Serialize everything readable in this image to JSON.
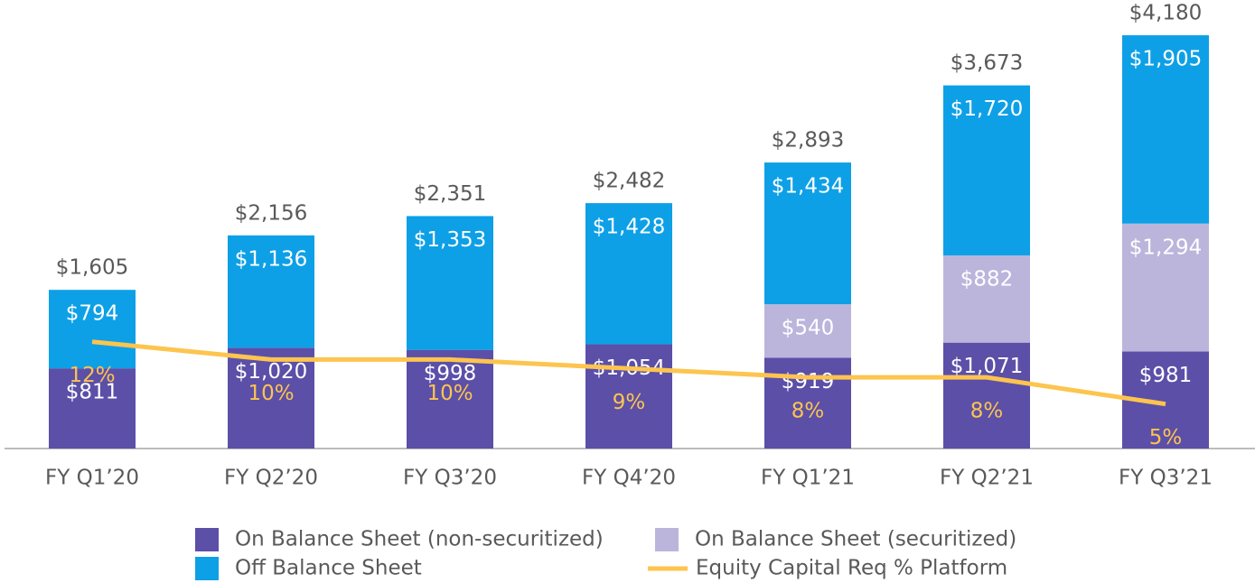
{
  "chart_data": {
    "type": "stacked_bar_line",
    "categories": [
      "FY Q1’20",
      "FY Q2’20",
      "FY Q3’20",
      "FY Q4’20",
      "FY Q1’21",
      "FY Q2’21",
      "FY Q3’21"
    ],
    "series": [
      {
        "name": "On Balance Sheet (non-securitized)",
        "color": "#5b4fa8",
        "values": [
          811,
          1020,
          998,
          1054,
          919,
          1071,
          981
        ],
        "value_labels": [
          "$811",
          "$1,020",
          "$998",
          "$1,054",
          "$919",
          "$1,071",
          "$981"
        ]
      },
      {
        "name": "On Balance Sheet (securitized)",
        "color": "#bbb5dc",
        "values": [
          null,
          null,
          null,
          null,
          540,
          882,
          1294
        ],
        "value_labels": [
          null,
          null,
          null,
          null,
          "$540",
          "$882",
          "$1,294"
        ]
      },
      {
        "name": "Off Balance Sheet",
        "color": "#0ea0e6",
        "values": [
          794,
          1136,
          1353,
          1428,
          1434,
          1720,
          1905
        ],
        "value_labels": [
          "$794",
          "$1,136",
          "$1,353",
          "$1,428",
          "$1,434",
          "$1,720",
          "$1,905"
        ]
      },
      {
        "name": "Equity Capital Req % Platform",
        "color": "#fdc44f",
        "axis": "y2",
        "values": [
          12,
          10,
          10,
          9,
          8,
          8,
          5
        ],
        "value_labels": [
          "12%",
          "10%",
          "10%",
          "9%",
          "8%",
          "8%",
          "5%"
        ]
      }
    ],
    "totals": [
      1605,
      2156,
      2351,
      2482,
      2893,
      3673,
      4180
    ],
    "total_labels": [
      "$1,605",
      "$2,156",
      "$2,351",
      "$2,482",
      "$2,893",
      "$3,673",
      "$4,180"
    ],
    "ylim": [
      0,
      4500
    ],
    "y2lim": [
      0,
      50
    ]
  }
}
